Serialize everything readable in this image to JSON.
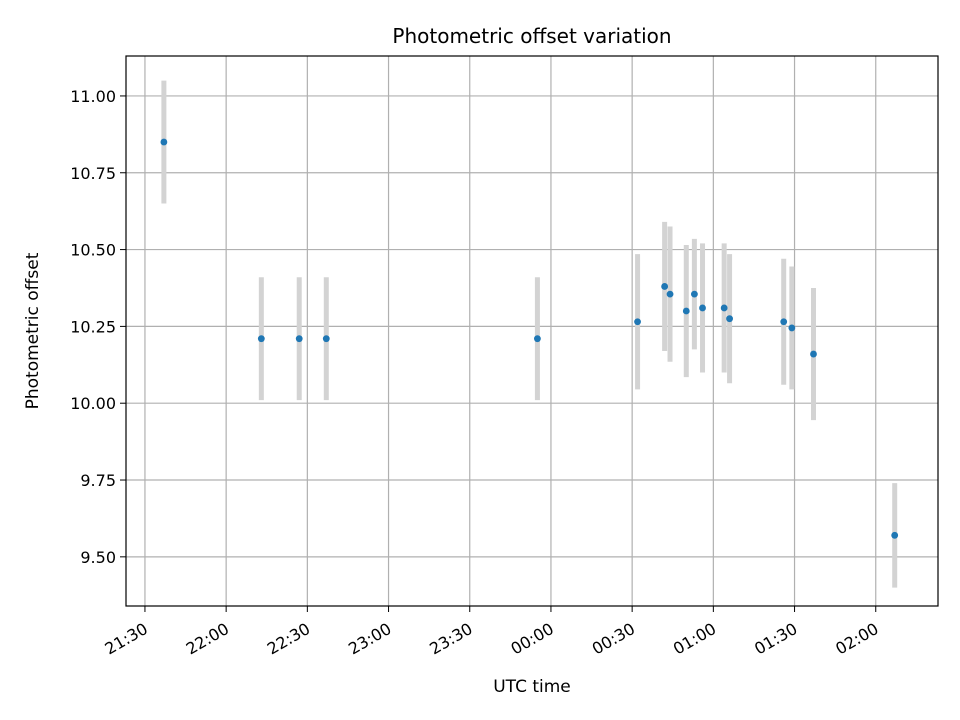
{
  "chart_data": {
    "type": "scatter",
    "title": "Photometric offset variation",
    "xlabel": "UTC time",
    "ylabel": "Photometric offset",
    "x_tick_labels": [
      "21:30",
      "22:00",
      "22:30",
      "23:00",
      "23:30",
      "00:00",
      "00:30",
      "01:00",
      "01:30",
      "02:00"
    ],
    "y_tick_labels": [
      "9.50",
      "9.75",
      "10.00",
      "10.25",
      "10.50",
      "10.75",
      "11.00"
    ],
    "grid": true,
    "ylim": [
      9.34,
      11.13
    ],
    "xlim": [
      "21:23",
      "02:23"
    ],
    "colors": {
      "point": "#1f77b4",
      "errorbar": "#d3d3d3",
      "grid": "#b0b0b0"
    },
    "series": [
      {
        "points": [
          {
            "x": "21:37",
            "y": 10.85,
            "err": 0.2
          },
          {
            "x": "22:13",
            "y": 10.21,
            "err": 0.2
          },
          {
            "x": "22:27",
            "y": 10.21,
            "err": 0.2
          },
          {
            "x": "22:37",
            "y": 10.21,
            "err": 0.2
          },
          {
            "x": "23:55",
            "y": 10.21,
            "err": 0.2
          },
          {
            "x": "00:32",
            "y": 10.265,
            "err": 0.22
          },
          {
            "x": "00:42",
            "y": 10.38,
            "err": 0.21
          },
          {
            "x": "00:44",
            "y": 10.355,
            "err": 0.22
          },
          {
            "x": "00:50",
            "y": 10.3,
            "err": 0.215
          },
          {
            "x": "00:53",
            "y": 10.355,
            "err": 0.18
          },
          {
            "x": "00:56",
            "y": 10.31,
            "err": 0.21
          },
          {
            "x": "01:04",
            "y": 10.31,
            "err": 0.21
          },
          {
            "x": "01:06",
            "y": 10.275,
            "err": 0.21
          },
          {
            "x": "01:26",
            "y": 10.265,
            "err": 0.205
          },
          {
            "x": "01:29",
            "y": 10.245,
            "err": 0.2
          },
          {
            "x": "01:37",
            "y": 10.16,
            "err": 0.215
          },
          {
            "x": "02:07",
            "y": 9.57,
            "err": 0.17
          }
        ]
      }
    ]
  }
}
